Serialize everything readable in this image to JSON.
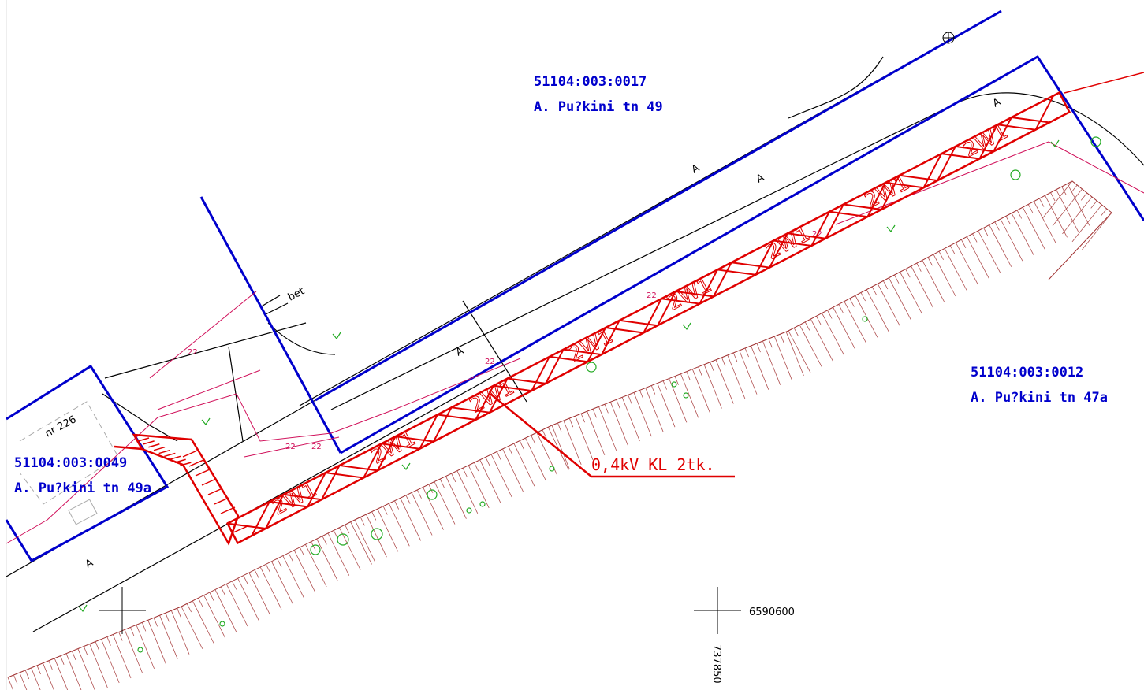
{
  "parcels": [
    {
      "id": "51104:003:0017",
      "address": "A. Pu?kini tn 49"
    },
    {
      "id": "51104:003:0012",
      "address": "A. Pu?kini tn 47a"
    },
    {
      "id": "51104:003:0049",
      "address": "A. Pu?kini tn 49a"
    }
  ],
  "cable_label": "0,4kV KL 2tk.",
  "area_labels": [
    "A",
    "A",
    "A",
    "A",
    "A"
  ],
  "surface_label": "bet",
  "building_label": "nr 226",
  "cable_codes": [
    "2W1",
    "2W1",
    "2W1",
    "2W1",
    "2W1",
    "2W1",
    "2W1",
    "2W1"
  ],
  "pipe_codes": [
    "22",
    "22",
    "22",
    "22",
    "22",
    "22"
  ],
  "coordinates": {
    "north": "6590600",
    "east": "737850"
  }
}
